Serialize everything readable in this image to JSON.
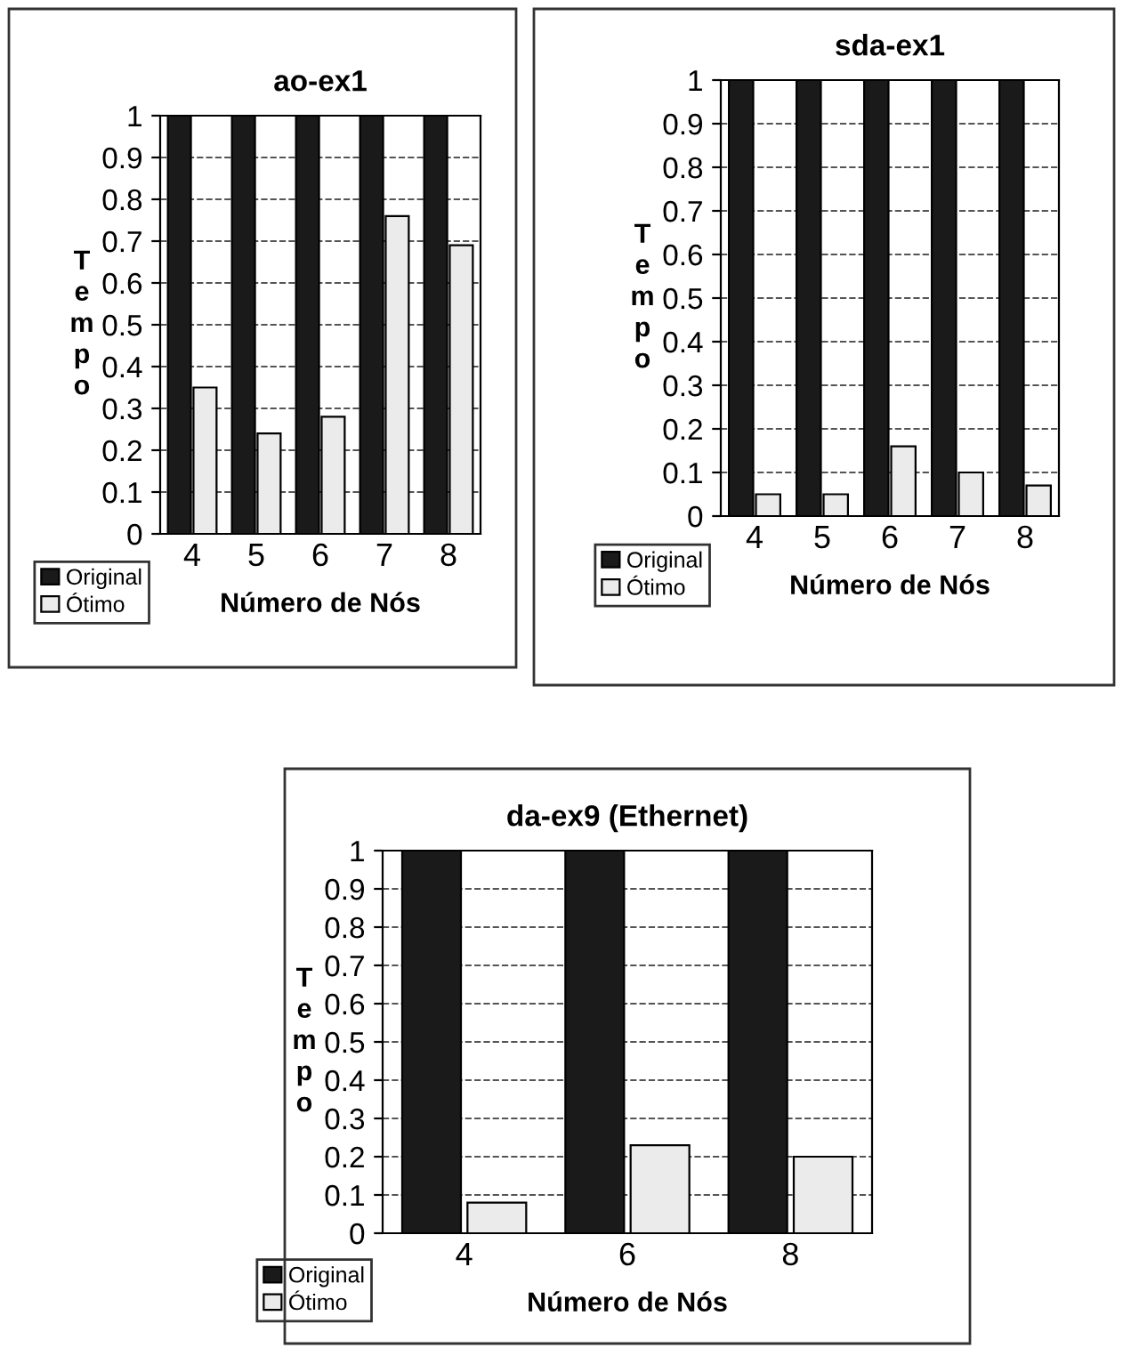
{
  "chart_data": [
    {
      "type": "bar",
      "title": "ao-ex1",
      "xlabel": "Número de Nós",
      "ylabel": "Tempo",
      "categories": [
        "4",
        "5",
        "6",
        "7",
        "8"
      ],
      "series": [
        {
          "name": "Original",
          "color": "#1a1a1a",
          "values": [
            1,
            1,
            1,
            1,
            1
          ]
        },
        {
          "name": "Ótimo",
          "color": "#ebebeb",
          "values": [
            0.35,
            0.24,
            0.28,
            0.76,
            0.69
          ]
        }
      ],
      "ylim": [
        0,
        1
      ],
      "yticks": [
        0,
        0.1,
        0.2,
        0.3,
        0.4,
        0.5,
        0.6,
        0.7,
        0.8,
        0.9,
        1
      ],
      "grid": "y",
      "legend": "bottom left"
    },
    {
      "type": "bar",
      "title": "sda-ex1",
      "xlabel": "Número de Nós",
      "ylabel": "Tempo",
      "categories": [
        "4",
        "5",
        "6",
        "7",
        "8"
      ],
      "series": [
        {
          "name": "Original",
          "color": "#1a1a1a",
          "values": [
            1,
            1,
            1,
            1,
            1
          ]
        },
        {
          "name": "Ótimo",
          "color": "#ebebeb",
          "values": [
            0.05,
            0.05,
            0.16,
            0.1,
            0.07
          ]
        }
      ],
      "ylim": [
        0,
        1
      ],
      "yticks": [
        0,
        0.1,
        0.2,
        0.3,
        0.4,
        0.5,
        0.6,
        0.7,
        0.8,
        0.9,
        1
      ],
      "grid": "y",
      "legend": "bottom left"
    },
    {
      "type": "bar",
      "title": "da-ex9 (Ethernet)",
      "xlabel": "Número de Nós",
      "ylabel": "Tempo",
      "categories": [
        "4",
        "6",
        "8"
      ],
      "series": [
        {
          "name": "Original",
          "color": "#1a1a1a",
          "values": [
            1,
            1,
            1
          ]
        },
        {
          "name": "Ótimo",
          "color": "#ebebeb",
          "values": [
            0.08,
            0.23,
            0.2
          ]
        }
      ],
      "ylim": [
        0,
        1
      ],
      "yticks": [
        0,
        0.1,
        0.2,
        0.3,
        0.4,
        0.5,
        0.6,
        0.7,
        0.8,
        0.9,
        1
      ],
      "grid": "y",
      "legend": "bottom left"
    }
  ]
}
